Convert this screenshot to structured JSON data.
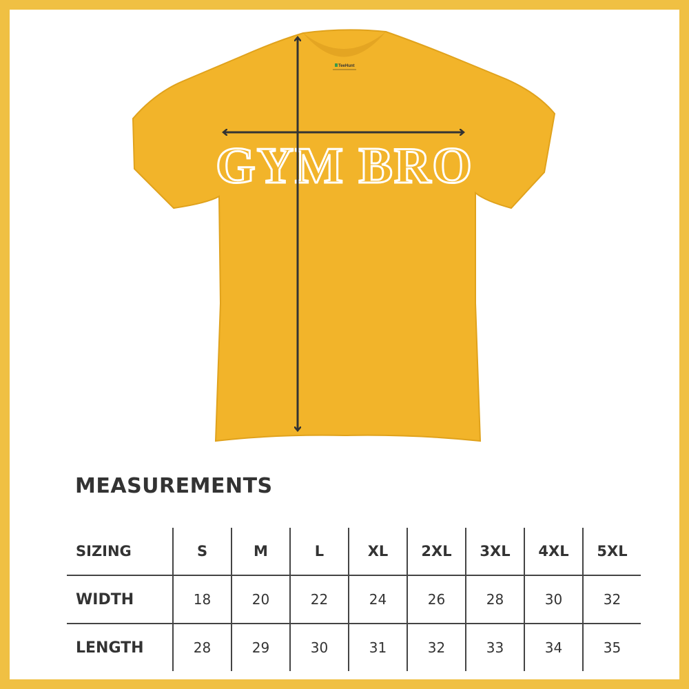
{
  "shirt": {
    "print_text": "GYM BRO",
    "label_brand": "TeeHunt",
    "color": "#f2b42a",
    "arrow_color": "#333333"
  },
  "frame_color": "#f0c043",
  "measurements": {
    "title": "MEASUREMENTS",
    "header": {
      "label": "SIZING",
      "sizes": [
        "S",
        "M",
        "L",
        "XL",
        "2XL",
        "3XL",
        "4XL",
        "5XL"
      ]
    },
    "rows": [
      {
        "label": "WIDTH",
        "values": [
          "18",
          "20",
          "22",
          "24",
          "26",
          "28",
          "30",
          "32"
        ]
      },
      {
        "label": "LENGTH",
        "values": [
          "28",
          "29",
          "30",
          "31",
          "32",
          "33",
          "34",
          "35"
        ]
      }
    ]
  }
}
